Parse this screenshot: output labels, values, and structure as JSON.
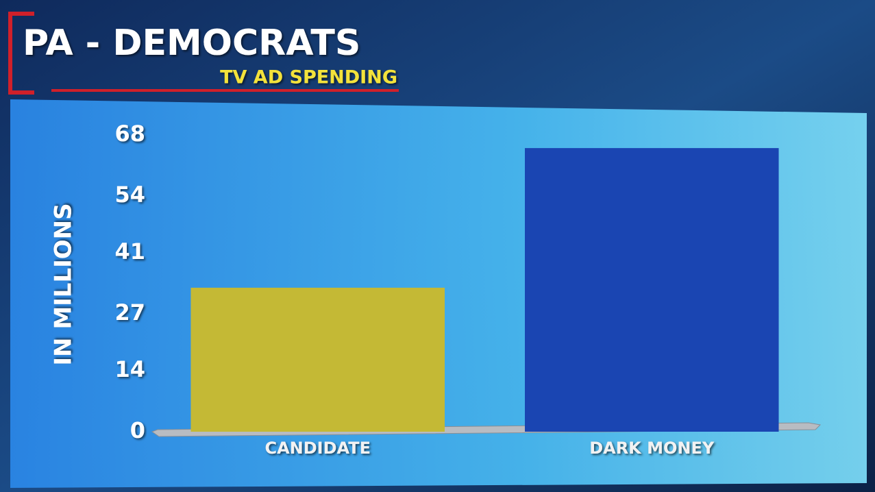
{
  "chart_data": {
    "type": "bar",
    "title": "PA - DEMOCRATS",
    "subtitle": "TV AD SPENDING",
    "y_label": "IN MILLIONS",
    "categories": [
      "CANDIDATE",
      "DARK MONEY"
    ],
    "values": [
      33,
      65
    ],
    "colors": [
      "#c4b935",
      "#1a45b2"
    ],
    "ylim": [
      0,
      68
    ],
    "yticks": [
      0,
      14,
      27,
      41,
      54,
      68
    ],
    "grid": false
  }
}
